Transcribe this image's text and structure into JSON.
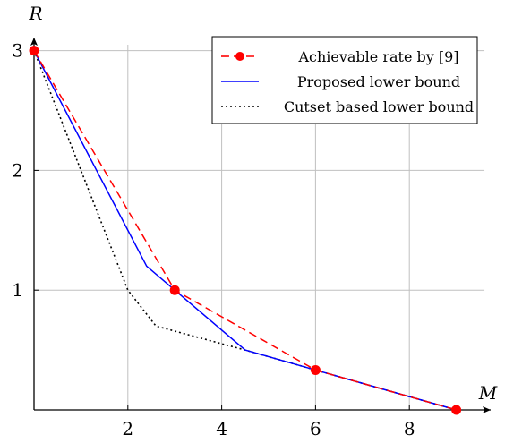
{
  "chart_data": {
    "type": "line",
    "xlabel": "M",
    "ylabel": "R",
    "xlim": [
      0,
      9.6
    ],
    "ylim": [
      0,
      3.1
    ],
    "xticks": [
      2,
      4,
      6,
      8
    ],
    "yticks": [
      1,
      2,
      3
    ],
    "xtick_labels": [
      "2",
      "4",
      "6",
      "8"
    ],
    "ytick_labels": [
      "1",
      "2",
      "3"
    ],
    "grid": true,
    "legend_position": "top-right",
    "series": [
      {
        "name": "Achievable rate by [9]",
        "color": "#ff0000",
        "style": "dashed",
        "marker": "circle",
        "x": [
          0,
          3,
          6,
          9
        ],
        "y": [
          3,
          1,
          0.333,
          0
        ]
      },
      {
        "name": "Proposed lower bound",
        "color": "#0000ff",
        "style": "solid",
        "marker": "none",
        "x": [
          0,
          2.4,
          3,
          4.5,
          6,
          9
        ],
        "y": [
          3,
          1.2,
          1,
          0.5,
          0.333,
          0
        ]
      },
      {
        "name": "Cutset based lower bound",
        "color": "#000000",
        "style": "dotted",
        "marker": "none",
        "x": [
          0,
          1,
          2,
          2.6,
          4.5,
          6,
          9
        ],
        "y": [
          3,
          2,
          1,
          0.7,
          0.5,
          0.333,
          0
        ]
      }
    ]
  }
}
